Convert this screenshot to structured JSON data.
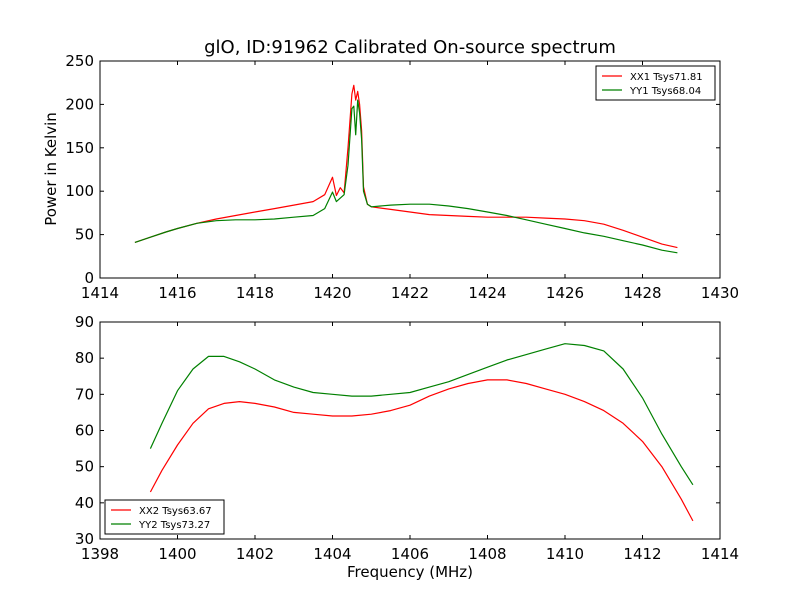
{
  "figure": {
    "title": "glO, ID:91962 Calibrated On-source spectrum",
    "xlabel": "Frequency (MHz)",
    "ylabel": "Power in Kelvin"
  },
  "chart_data": [
    {
      "type": "line",
      "title": "glO, ID:91962 Calibrated On-source spectrum",
      "xlabel": "",
      "ylabel": "Power in Kelvin",
      "xlim": [
        1414,
        1430
      ],
      "ylim": [
        0,
        250
      ],
      "xticks": [
        1414,
        1416,
        1418,
        1420,
        1422,
        1424,
        1426,
        1428,
        1430
      ],
      "yticks": [
        0,
        50,
        100,
        150,
        200,
        250
      ],
      "legend_position": "top-right",
      "grid": false,
      "series": [
        {
          "name": "XX1 Tsys71.81",
          "color": "#ff0000",
          "x": [
            1414.9,
            1415.3,
            1415.7,
            1416.0,
            1416.5,
            1417.0,
            1417.5,
            1418.0,
            1418.5,
            1419.0,
            1419.5,
            1419.8,
            1420.0,
            1420.1,
            1420.2,
            1420.3,
            1420.4,
            1420.5,
            1420.55,
            1420.6,
            1420.65,
            1420.7,
            1420.75,
            1420.8,
            1420.9,
            1421.0,
            1421.5,
            1422.0,
            1422.5,
            1423.0,
            1423.5,
            1424.0,
            1424.5,
            1425.0,
            1425.5,
            1426.0,
            1426.5,
            1427.0,
            1427.5,
            1428.0,
            1428.5,
            1428.9
          ],
          "y": [
            41,
            47,
            53,
            57,
            63,
            68,
            72,
            76,
            80,
            84,
            88,
            96,
            116,
            95,
            104,
            98,
            150,
            212,
            222,
            205,
            215,
            200,
            170,
            105,
            85,
            82,
            79,
            76,
            73,
            72,
            71,
            70,
            70,
            70,
            69,
            68,
            66,
            62,
            55,
            47,
            39,
            35
          ]
        },
        {
          "name": "YY1 Tsys68.04",
          "color": "#008000",
          "x": [
            1414.9,
            1415.3,
            1415.7,
            1416.0,
            1416.5,
            1417.0,
            1417.5,
            1418.0,
            1418.5,
            1419.0,
            1419.5,
            1419.8,
            1420.0,
            1420.1,
            1420.2,
            1420.3,
            1420.4,
            1420.5,
            1420.55,
            1420.6,
            1420.65,
            1420.7,
            1420.75,
            1420.8,
            1420.9,
            1421.0,
            1421.5,
            1422.0,
            1422.5,
            1423.0,
            1423.5,
            1424.0,
            1424.5,
            1425.0,
            1425.5,
            1426.0,
            1426.5,
            1427.0,
            1427.5,
            1428.0,
            1428.5,
            1428.9
          ],
          "y": [
            41,
            47,
            53,
            57,
            63,
            66,
            67,
            67,
            68,
            70,
            72,
            80,
            99,
            88,
            92,
            96,
            130,
            195,
            198,
            165,
            205,
            190,
            160,
            100,
            85,
            82,
            84,
            85,
            85,
            83,
            80,
            76,
            72,
            67,
            62,
            57,
            52,
            48,
            43,
            38,
            32,
            29
          ]
        }
      ]
    },
    {
      "type": "line",
      "title": "",
      "xlabel": "Frequency (MHz)",
      "ylabel": "",
      "xlim": [
        1398,
        1414
      ],
      "ylim": [
        30,
        90
      ],
      "xticks": [
        1398,
        1400,
        1402,
        1404,
        1406,
        1408,
        1410,
        1412,
        1414
      ],
      "yticks": [
        30,
        40,
        50,
        60,
        70,
        80,
        90
      ],
      "legend_position": "bottom-left",
      "grid": false,
      "series": [
        {
          "name": "XX2 Tsys63.67",
          "color": "#ff0000",
          "x": [
            1399.3,
            1399.6,
            1400.0,
            1400.4,
            1400.8,
            1401.2,
            1401.6,
            1402.0,
            1402.5,
            1403.0,
            1403.5,
            1404.0,
            1404.5,
            1405.0,
            1405.5,
            1406.0,
            1406.5,
            1407.0,
            1407.5,
            1408.0,
            1408.5,
            1409.0,
            1409.5,
            1410.0,
            1410.5,
            1411.0,
            1411.5,
            1412.0,
            1412.5,
            1413.0,
            1413.3
          ],
          "y": [
            43,
            49,
            56,
            62,
            66,
            67.5,
            68,
            67.5,
            66.5,
            65,
            64.5,
            64,
            64,
            64.5,
            65.5,
            67,
            69.5,
            71.5,
            73,
            74,
            74,
            73,
            71.5,
            70,
            68,
            65.5,
            62,
            57,
            50,
            41,
            35
          ]
        },
        {
          "name": "YY2 Tsys73.27",
          "color": "#008000",
          "x": [
            1399.3,
            1399.6,
            1400.0,
            1400.4,
            1400.8,
            1401.2,
            1401.6,
            1402.0,
            1402.5,
            1403.0,
            1403.5,
            1404.0,
            1404.5,
            1405.0,
            1405.5,
            1406.0,
            1406.5,
            1407.0,
            1407.5,
            1408.0,
            1408.5,
            1409.0,
            1409.5,
            1410.0,
            1410.5,
            1411.0,
            1411.5,
            1412.0,
            1412.5,
            1413.0,
            1413.3
          ],
          "y": [
            55,
            62,
            71,
            77,
            80.5,
            80.5,
            79,
            77,
            74,
            72,
            70.5,
            70,
            69.5,
            69.5,
            70,
            70.5,
            72,
            73.5,
            75.5,
            77.5,
            79.5,
            81,
            82.5,
            84,
            83.5,
            82,
            77,
            69,
            59,
            50,
            45
          ]
        }
      ]
    }
  ]
}
